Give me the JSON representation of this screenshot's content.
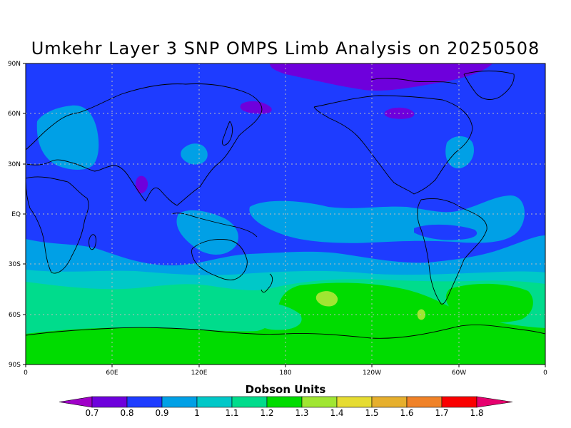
{
  "title": "Umkehr Layer 3 SNP OMPS Limb Analysis on 20250508",
  "lat_ticks": [
    "90N",
    "60N",
    "30N",
    "EQ",
    "30S",
    "60S",
    "90S"
  ],
  "lon_ticks": [
    "0",
    "60E",
    "120E",
    "180",
    "120W",
    "60W",
    "0"
  ],
  "colorbar": {
    "title": "Dobson Units",
    "levels": [
      "0.7",
      "0.8",
      "0.9",
      "1",
      "1.1",
      "1.2",
      "1.3",
      "1.4",
      "1.5",
      "1.6",
      "1.7",
      "1.8"
    ],
    "colors": [
      "#a000c8",
      "#6e00dc",
      "#1e3cff",
      "#00a0e6",
      "#00c8c8",
      "#00dc8c",
      "#00dc00",
      "#a0e632",
      "#e6dc32",
      "#e6af2d",
      "#f08228",
      "#fa0000",
      "#e6006e"
    ]
  },
  "chart_data": {
    "type": "heatmap",
    "title": "Umkehr Layer 3 SNP OMPS Limb Analysis on 20250508",
    "xlabel": "",
    "ylabel": "",
    "units": "Dobson Units",
    "x_range": [
      "0",
      "0"
    ],
    "y_range": [
      "90S",
      "90N"
    ],
    "grid": true,
    "grid_lines": "dotted",
    "background_value_range": [
      0.8,
      0.9
    ],
    "regions": [
      {
        "area": "North Pole / Arctic",
        "value_range": [
          0.7,
          0.8
        ]
      },
      {
        "area": "Kamchatka / Bering",
        "value_range": [
          0.7,
          0.8
        ]
      },
      {
        "area": "Hudson Bay",
        "value_range": [
          0.7,
          0.8
        ]
      },
      {
        "area": "India",
        "value_range": [
          0.7,
          0.8
        ]
      },
      {
        "area": "Europe / Russia",
        "value_range": [
          0.9,
          1.0
        ]
      },
      {
        "area": "East China",
        "value_range": [
          0.9,
          1.0
        ]
      },
      {
        "area": "West Atlantic",
        "value_range": [
          0.9,
          1.0
        ]
      },
      {
        "area": "Tropical Pacific band",
        "value_range": [
          0.9,
          1.0
        ]
      },
      {
        "area": "Southern mid-latitude band (30S-50S)",
        "value_range": [
          1.0,
          1.2
        ]
      },
      {
        "area": "Southern Ocean (50S-70S)",
        "value_range": [
          1.2,
          1.3
        ]
      },
      {
        "area": "South Pacific maximum",
        "value_range": [
          1.3,
          1.4
        ]
      },
      {
        "area": "Antarctica",
        "value_range": [
          1.2,
          1.3
        ]
      }
    ]
  }
}
